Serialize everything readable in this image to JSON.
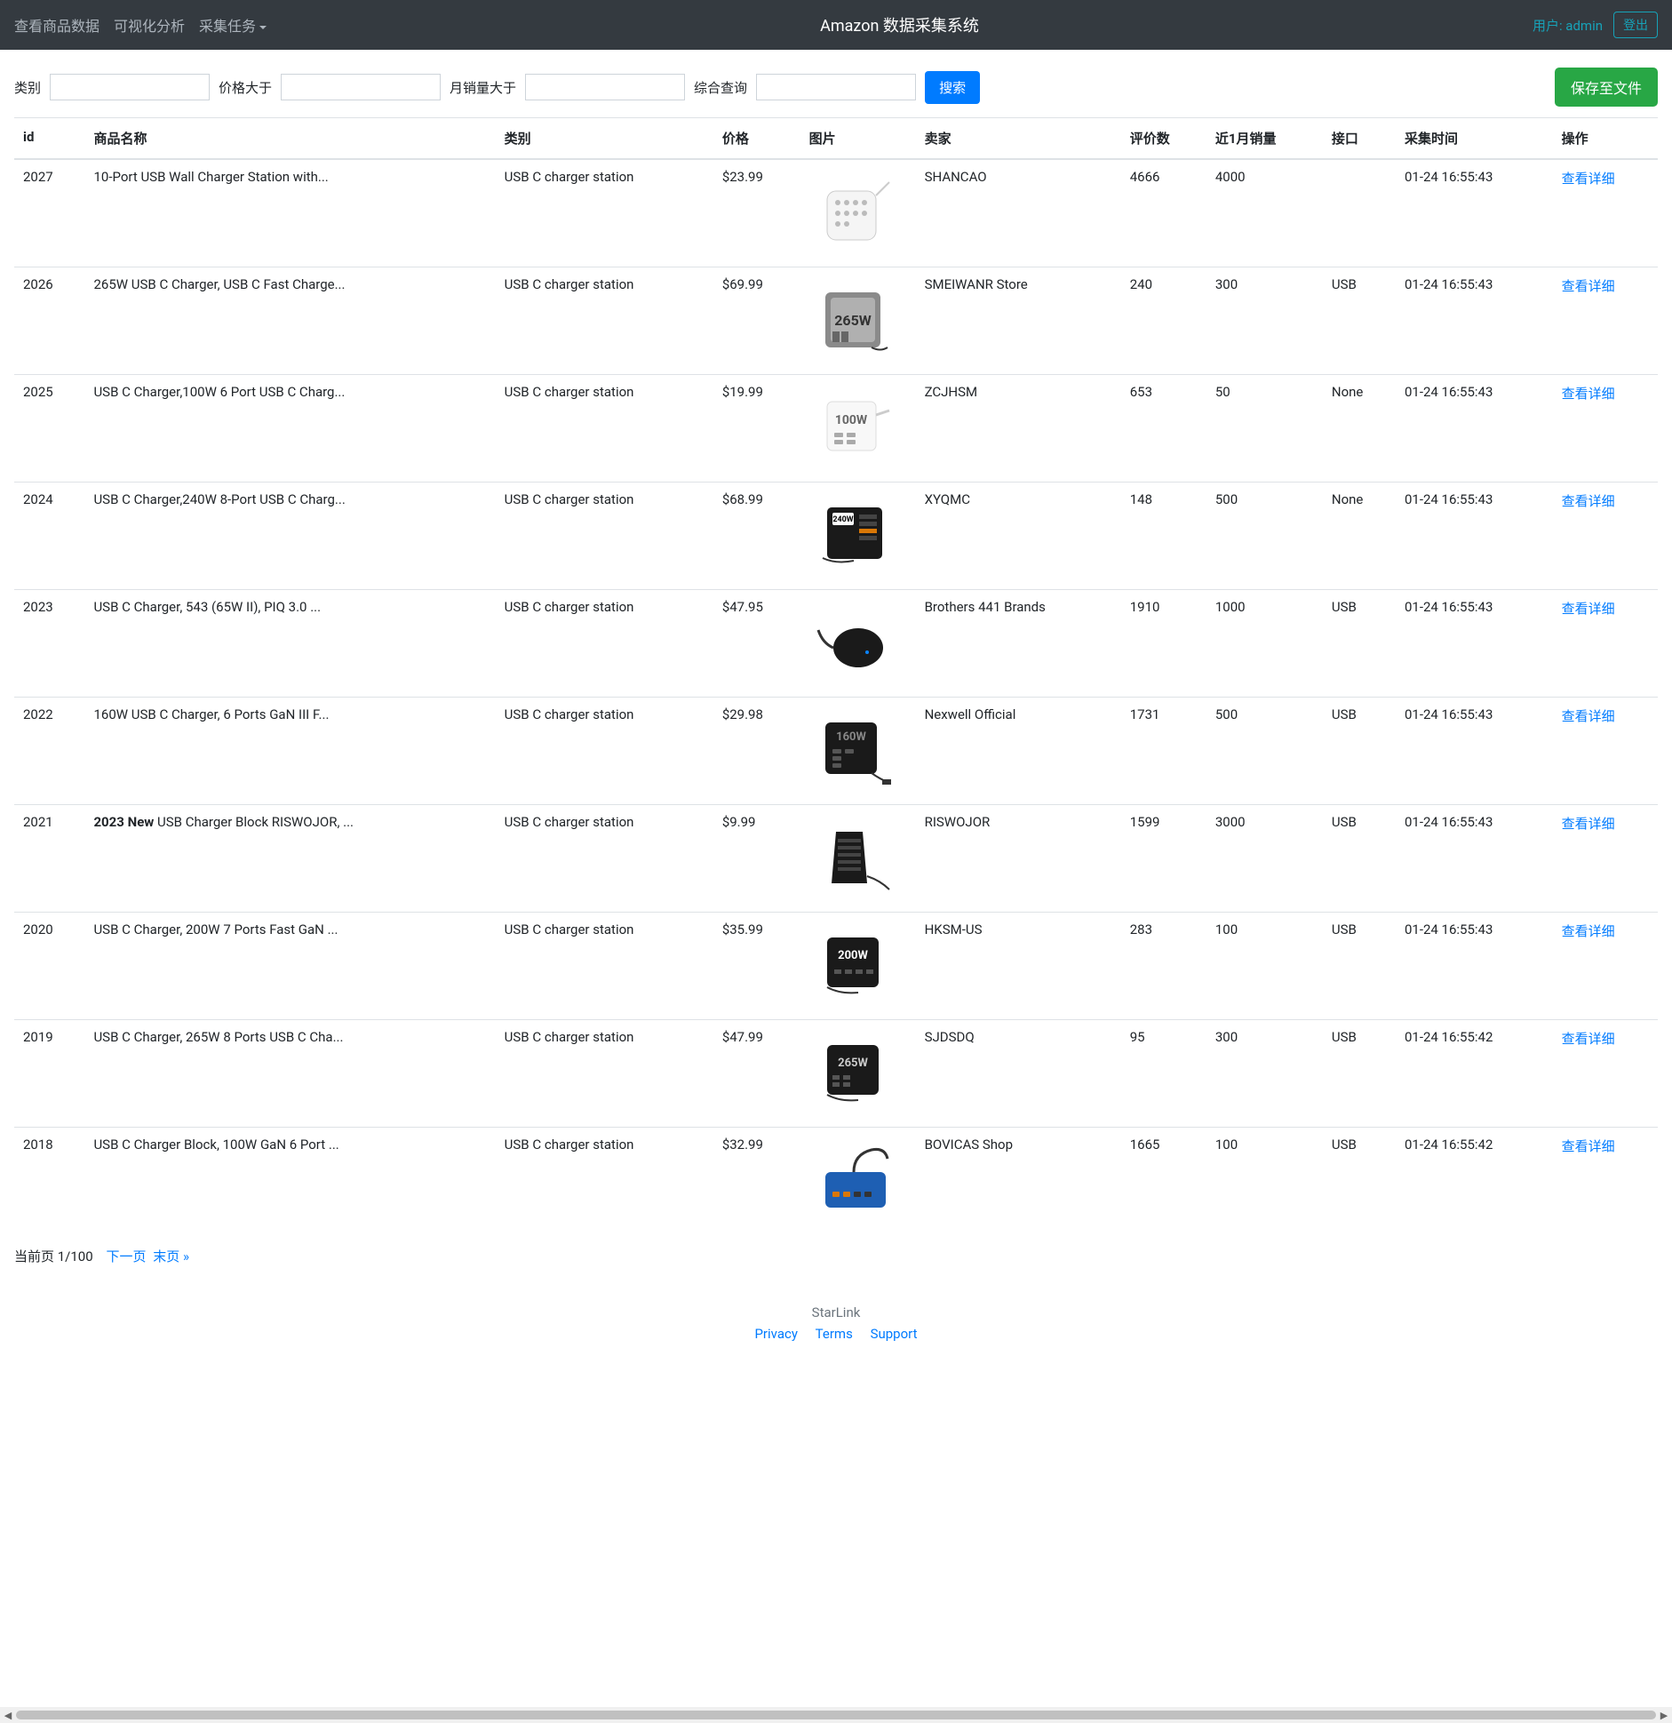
{
  "navbar": {
    "links": {
      "view_data": "查看商品数据",
      "visual": "可视化分析",
      "tasks": "采集任务"
    },
    "brand": "Amazon 数据采集系统",
    "user_label": "用户: admin",
    "logout": "登出"
  },
  "filters": {
    "category_label": "类别",
    "price_gt_label": "价格大于",
    "monthly_sales_gt_label": "月销量大于",
    "search_label": "综合查询",
    "search_btn": "搜索",
    "save_btn": "保存至文件"
  },
  "columns": {
    "id": "id",
    "name": "商品名称",
    "category": "类别",
    "price": "价格",
    "image": "图片",
    "seller": "卖家",
    "reviews": "评价数",
    "monthly_sales": "近1月销量",
    "port": "接口",
    "collect_time": "采集时间",
    "action": "操作"
  },
  "action_label": "查看详细",
  "rows": [
    {
      "id": "2027",
      "name": "10-Port USB Wall Charger Station with...",
      "category": "USB C charger station",
      "price": "$23.99",
      "seller": "SHANCAO",
      "reviews": "4666",
      "sales": "4000",
      "port": "",
      "time": "01-24 16:55:43",
      "img": "strip"
    },
    {
      "id": "2026",
      "name": "265W USB C Charger, USB C Fast Charge...",
      "category": "USB C charger station",
      "price": "$69.99",
      "seller": "SMEIWANR Store",
      "reviews": "240",
      "sales": "300",
      "port": "USB",
      "time": "01-24 16:55:43",
      "img": "265w"
    },
    {
      "id": "2025",
      "name": "USB C Charger,100W 6 Port USB C Charg...",
      "category": "USB C charger station",
      "price": "$19.99",
      "seller": "ZCJHSM",
      "reviews": "653",
      "sales": "50",
      "port": "None",
      "time": "01-24 16:55:43",
      "img": "100w"
    },
    {
      "id": "2024",
      "name": "USB C Charger,240W 8-Port USB C Charg...",
      "category": "USB C charger station",
      "price": "$68.99",
      "seller": "XYQMC",
      "reviews": "148",
      "sales": "500",
      "port": "None",
      "time": "01-24 16:55:43",
      "img": "240w"
    },
    {
      "id": "2023",
      "name": "USB C Charger, 543 (65W II), PIQ 3.0 ...",
      "category": "USB C charger station",
      "price": "$47.95",
      "seller": "Brothers 441 Brands",
      "reviews": "1910",
      "sales": "1000",
      "port": "USB",
      "time": "01-24 16:55:43",
      "img": "puck"
    },
    {
      "id": "2022",
      "name": "160W USB C Charger, 6 Ports GaN III F...",
      "category": "USB C charger station",
      "price": "$29.98",
      "seller": "Nexwell Official",
      "reviews": "1731",
      "sales": "500",
      "port": "USB",
      "time": "01-24 16:55:43",
      "img": "160w"
    },
    {
      "id": "2021",
      "name_bold": "2023 New",
      "name_rest": " USB Charger Block RISWOJOR, ...",
      "category": "USB C charger station",
      "price": "$9.99",
      "seller": "RISWOJOR",
      "reviews": "1599",
      "sales": "3000",
      "port": "USB",
      "time": "01-24 16:55:43",
      "img": "tower"
    },
    {
      "id": "2020",
      "name": "USB C Charger, 200W 7 Ports Fast GaN ...",
      "category": "USB C charger station",
      "price": "$35.99",
      "seller": "HKSM-US",
      "reviews": "283",
      "sales": "100",
      "port": "USB",
      "time": "01-24 16:55:43",
      "img": "200w"
    },
    {
      "id": "2019",
      "name": "USB C Charger, 265W 8 Ports USB C Cha...",
      "category": "USB C charger station",
      "price": "$47.99",
      "seller": "SJDSDQ",
      "reviews": "95",
      "sales": "300",
      "port": "USB",
      "time": "01-24 16:55:42",
      "img": "265b"
    },
    {
      "id": "2018",
      "name": "USB C Charger Block, 100W GaN 6 Port ...",
      "category": "USB C charger station",
      "price": "$32.99",
      "seller": "BOVICAS Shop",
      "reviews": "1665",
      "sales": "100",
      "port": "USB",
      "time": "01-24 16:55:42",
      "img": "blue"
    }
  ],
  "pagination": {
    "current": "当前页 1/100",
    "next": "下一页",
    "last": "末页 »"
  },
  "footer": {
    "name": "StarLink",
    "privacy": "Privacy",
    "terms": "Terms",
    "support": "Support"
  },
  "svg": {
    "strip": "<svg viewBox='0 0 100 100'><rect x='20' y='25' width='55' height='55' rx='10' fill='#f5f5f5' stroke='#ccc'/><circle cx='32' cy='38' r='3' fill='#bbb'/><circle cx='42' cy='38' r='3' fill='#bbb'/><circle cx='52' cy='38' r='3' fill='#bbb'/><circle cx='62' cy='38' r='3' fill='#bbb'/><circle cx='32' cy='50' r='3' fill='#bbb'/><circle cx='42' cy='50' r='3' fill='#bbb'/><circle cx='52' cy='50' r='3' fill='#bbb'/><circle cx='62' cy='50' r='3' fill='#bbb'/><circle cx='32' cy='62' r='3' fill='#bbb'/><circle cx='42' cy='62' r='3' fill='#bbb'/><line x1='75' y1='30' x2='90' y2='15' stroke='#ccc' stroke-width='2'/></svg>",
    "265w": "<svg viewBox='0 0 100 100'><rect x='18' y='18' width='62' height='62' rx='6' fill='#8a8a8a'/><rect x='24' y='24' width='50' height='50' rx='4' fill='#b0b0b0'/><text x='49' y='55' font-size='16' font-weight='bold' fill='#333' text-anchor='middle'>265W</text><rect x='26' y='62' width='8' height='12' fill='#666'/><rect x='36' y='62' width='8' height='12' fill='#666'/><path d='M70 80 Q80 85 88 80' stroke='#333' stroke-width='2' fill='none'/></svg>",
    "100w": "<svg viewBox='0 0 100 100'><rect x='20' y='20' width='55' height='55' rx='6' fill='#f8f8f8' stroke='#ddd'/><text x='47' y='45' font-size='14' font-weight='bold' fill='#666' text-anchor='middle'>100W</text><rect x='28' y='55' width='10' height='5' rx='1' fill='#aaa'/><rect x='28' y='63' width='10' height='5' rx='1' fill='#aaa'/><rect x='42' y='55' width='10' height='5' rx='1' fill='#aaa'/><rect x='42' y='63' width='10' height='5' rx='1' fill='#aaa'/><line x1='75' y1='35' x2='90' y2='30' stroke='#ccc' stroke-width='3'/></svg>",
    "240w": "<svg viewBox='0 0 100 100'><rect x='20' y='18' width='62' height='58' rx='5' fill='#1a1a1a'/><rect x='26' y='24' width='24' height='14' rx='2' fill='#fff'/><text x='38' y='34' font-size='9' font-weight='bold' fill='#000' text-anchor='middle'>240W</text><rect x='56' y='26' width='20' height='5' fill='#444'/><rect x='56' y='34' width='20' height='5' fill='#444'/><rect x='56' y='42' width='20' height='5' fill='#d97706'/><rect x='56' y='50' width='20' height='5' fill='#444'/><path d='M15 75 Q30 82 50 78' stroke='#333' stroke-width='2' fill='none'/></svg>",
    "puck": "<svg viewBox='0 0 100 100'><ellipse cx='55' cy='55' rx='28' ry='22' fill='#1a1a1a'/><circle cx='65' cy='60' r='2' fill='#0a84ff'/><path d='M27 55 Q15 50 10 35' stroke='#333' stroke-width='3' fill='none'/></svg>",
    "160w": "<svg viewBox='0 0 100 100'><rect x='18' y='18' width='58' height='58' rx='6' fill='#1a1a1a'/><text x='47' y='38' font-size='13' font-weight='bold' fill='#888' text-anchor='middle'>160W</text><rect x='26' y='48' width='10' height='5' rx='1' fill='#555'/><rect x='26' y='56' width='10' height='5' rx='1' fill='#555'/><rect x='26' y='64' width='10' height='5' rx='1' fill='#555'/><rect x='40' y='48' width='10' height='5' rx='1' fill='#555'/><path d='M70 75 Q80 82 88 85' stroke='#333' stroke-width='2' fill='none'/><rect x='82' y='82' width='10' height='6' fill='#333'/></svg>",
    "tower": "<svg viewBox='0 0 100 100'><path d='M30 20 L60 20 L65 78 L25 78 Z' fill='#1a1a1a'/><rect x='32' y='28' width='26' height='4' fill='#444'/><rect x='32' y='36' width='26' height='4' fill='#444'/><rect x='32' y='44' width='26' height='4' fill='#444'/><rect x='32' y='52' width='26' height='4' fill='#444'/><rect x='32' y='60' width='26' height='4' fill='#444'/><path d='M65 70 Q80 75 90 85' stroke='#333' stroke-width='2' fill='none'/></svg>",
    "200w": "<svg viewBox='0 0 100 100'><rect x='20' y='18' width='58' height='56' rx='6' fill='#1a1a1a'/><text x='49' y='42' font-size='13' font-weight='bold' fill='#fff' text-anchor='middle'>200W</text><rect x='28' y='54' width='8' height='5' fill='#555'/><rect x='40' y='54' width='8' height='5' fill='#555'/><rect x='52' y='54' width='8' height='5' fill='#555'/><rect x='64' y='54' width='8' height='5' fill='#555'/><path d='M20 74 Q35 82 55 80' stroke='#333' stroke-width='2' fill='none'/></svg>",
    "265b": "<svg viewBox='0 0 100 100'><rect x='20' y='18' width='58' height='56' rx='6' fill='#1a1a1a'/><text x='49' y='42' font-size='13' font-weight='bold' fill='#ccc' text-anchor='middle'>265W</text><rect x='26' y='52' width='8' height='5' fill='#555'/><rect x='26' y='60' width='8' height='5' fill='#555'/><rect x='38' y='52' width='8' height='5' fill='#555'/><rect x='38' y='60' width='8' height='5' fill='#555'/><path d='M20 74 Q35 82 55 80' stroke='#333' stroke-width='2' fill='none'/></svg>",
    "blue": "<svg viewBox='0 0 100 100'><rect x='18' y='40' width='68' height='40' rx='6' fill='#1e5fb3'/><rect x='26' y='62' width='8' height='6' rx='1' fill='#d97706'/><rect x='38' y='62' width='8' height='6' rx='1' fill='#d97706'/><rect x='50' y='62' width='8' height='6' rx='1' fill='#333'/><rect x='62' y='62' width='8' height='6' rx='1' fill='#333'/><path d='M50 40 Q50 20 70 15 Q85 12 88 25' stroke='#333' stroke-width='3' fill='none'/></svg>"
  }
}
